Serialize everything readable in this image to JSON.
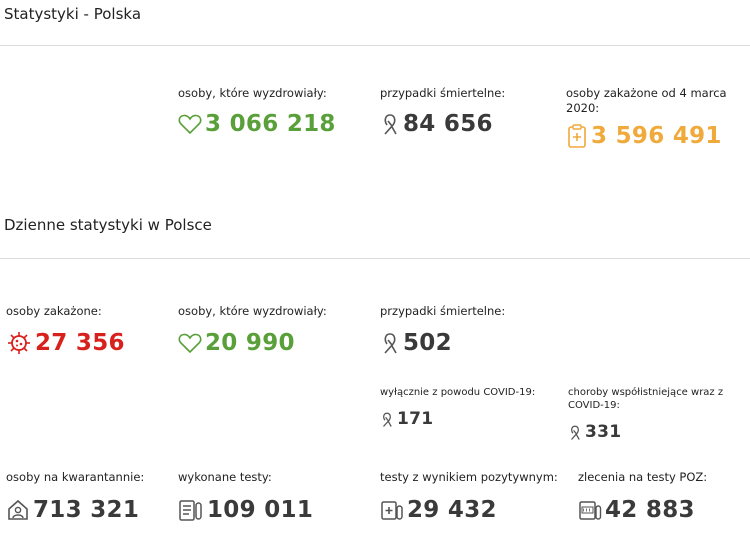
{
  "sections": {
    "poland": {
      "title": "Statystyki - Polska",
      "recovered": {
        "label": "osoby, które wyzdrowiały:",
        "value": "3 066 218",
        "icon": "heart-icon"
      },
      "deaths": {
        "label": "przypadki śmiertelne:",
        "value": "84 656",
        "icon": "ribbon-icon"
      },
      "infected": {
        "label": "osoby zakażone od 4 marca 2020:",
        "value": "3 596 491",
        "icon": "medical-clipboard-icon"
      }
    },
    "daily": {
      "title": "Dzienne statystyki w Polsce",
      "infected": {
        "label": "osoby zakażone:",
        "value": "27 356",
        "icon": "virus-icon"
      },
      "recovered": {
        "label": "osoby, które wyzdrowiały:",
        "value": "20 990",
        "icon": "heart-icon"
      },
      "deaths": {
        "label": "przypadki śmiertelne:",
        "value": "502",
        "icon": "ribbon-icon"
      },
      "deaths_covid_only": {
        "label": "wyłącznie z powodu COVID-19:",
        "value": "171",
        "icon": "ribbon-icon"
      },
      "deaths_comorbid": {
        "label": "choroby współistniejące wraz z COVID-19:",
        "value": "331",
        "icon": "ribbon-icon"
      },
      "quarantine": {
        "label": "osoby na kwarantannie:",
        "value": "713 321",
        "icon": "house-person-icon"
      },
      "tests": {
        "label": "wykonane testy:",
        "value": "109 011",
        "icon": "checklist-tube-icon"
      },
      "positive_tests": {
        "label": "testy z wynikiem pozytywnym:",
        "value": "29 432",
        "icon": "positive-test-icon"
      },
      "poz_orders": {
        "label": "zlecenia na testy POZ:",
        "value": "42 883",
        "icon": "poz-order-icon"
      }
    }
  },
  "colors": {
    "green": "#5aa03a",
    "gray": "#3a3a3a",
    "orange": "#f0a93b",
    "red": "#d8211c"
  }
}
